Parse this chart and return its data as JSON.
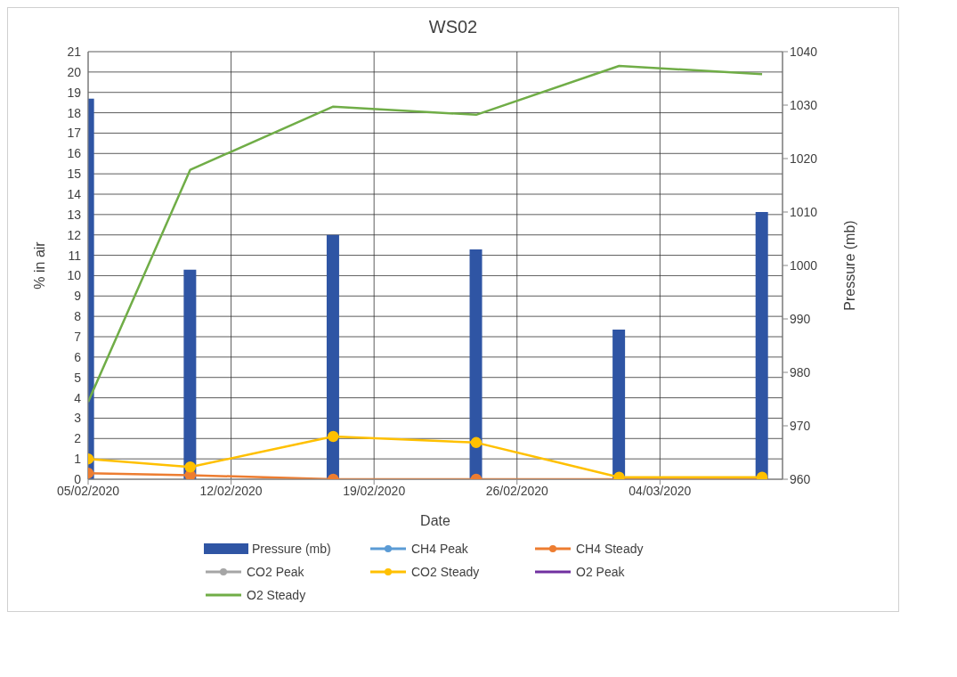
{
  "chart_data": {
    "type": "bar",
    "title": "WS02",
    "xlabel": "Date",
    "ylabel": "% in air",
    "y2label": "Pressure (mb)",
    "x": [
      "2020-02-05",
      "2020-02-10",
      "2020-02-17",
      "2020-02-24",
      "2020-03-02",
      "2020-03-09"
    ],
    "xlim": [
      "2020-02-05",
      "2020-03-10"
    ],
    "xticks": [
      {
        "value": "2020-02-05",
        "label": "05/02/2020"
      },
      {
        "value": "2020-02-12",
        "label": "12/02/2020"
      },
      {
        "value": "2020-02-19",
        "label": "19/02/2020"
      },
      {
        "value": "2020-02-26",
        "label": "26/02/2020"
      },
      {
        "value": "2020-03-04",
        "label": "04/03/2020"
      }
    ],
    "ylim": [
      0,
      21
    ],
    "yticks": [
      0,
      1,
      2,
      3,
      4,
      5,
      6,
      7,
      8,
      9,
      10,
      11,
      12,
      13,
      14,
      15,
      16,
      17,
      18,
      19,
      20,
      21
    ],
    "y2lim": [
      960,
      1040
    ],
    "y2ticks": [
      960,
      970,
      980,
      990,
      1000,
      1010,
      1020,
      1030,
      1040
    ],
    "grid": true,
    "legend": "bottom",
    "series": [
      {
        "name": "Pressure (mb)",
        "axis": "y2",
        "color": "#2f55a4",
        "values": [
          1031.2,
          999.2,
          1005.7,
          1003,
          988,
          1010
        ]
      },
      {
        "name": "CH4 Peak",
        "type": "line",
        "marker": "circle",
        "color": "#5b9bd5",
        "values": [
          null,
          null,
          null,
          null,
          null,
          null
        ]
      },
      {
        "name": "CH4 Steady",
        "type": "line",
        "marker": "circle",
        "color": "#ed7d31",
        "values": [
          0.3,
          0.2,
          0,
          0,
          0,
          0
        ]
      },
      {
        "name": "CO2 Peak",
        "type": "line",
        "marker": "circle",
        "color": "#a5a5a5",
        "values": [
          null,
          null,
          null,
          null,
          null,
          null
        ]
      },
      {
        "name": "CO2 Steady",
        "type": "line",
        "marker": "circle",
        "color": "#ffc000",
        "values": [
          1,
          0.6,
          2.1,
          1.8,
          0.1,
          0.1
        ]
      },
      {
        "name": "O2 Peak",
        "type": "line",
        "marker": "none",
        "color": "#7030a0",
        "values": [
          null,
          null,
          null,
          null,
          null,
          null
        ]
      },
      {
        "name": "O2 Steady",
        "type": "line",
        "marker": "none",
        "color": "#70ad47",
        "values": [
          3.8,
          15.2,
          18.3,
          17.9,
          20.3,
          19.9
        ]
      }
    ]
  }
}
